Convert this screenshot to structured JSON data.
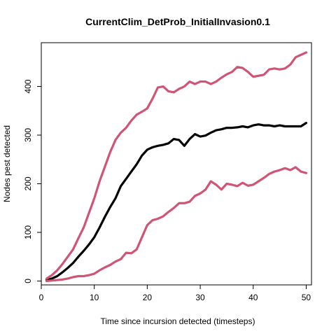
{
  "chart_data": {
    "type": "line",
    "title": "CurrentClim_DetProb_InitialInvasion0.1",
    "xlabel": "Time since incursion detected (timesteps)",
    "ylabel": "Nodes pest detected",
    "xlim": [
      0,
      51
    ],
    "ylim": [
      -8,
      490
    ],
    "xticks": [
      0,
      10,
      20,
      30,
      40,
      50
    ],
    "yticks": [
      0,
      100,
      200,
      300,
      400
    ],
    "grid": false,
    "series": [
      {
        "color": "#000000",
        "values": [
          [
            1,
            2
          ],
          [
            2,
            5
          ],
          [
            3,
            10
          ],
          [
            4,
            18
          ],
          [
            5,
            27
          ],
          [
            6,
            37
          ],
          [
            7,
            50
          ],
          [
            8,
            62
          ],
          [
            9,
            75
          ],
          [
            10,
            90
          ],
          [
            11,
            110
          ],
          [
            12,
            132
          ],
          [
            13,
            152
          ],
          [
            14,
            170
          ],
          [
            15,
            195
          ],
          [
            16,
            210
          ],
          [
            17,
            225
          ],
          [
            18,
            240
          ],
          [
            19,
            258
          ],
          [
            20,
            270
          ],
          [
            21,
            275
          ],
          [
            22,
            278
          ],
          [
            23,
            280
          ],
          [
            24,
            283
          ],
          [
            25,
            292
          ],
          [
            26,
            290
          ],
          [
            27,
            278
          ],
          [
            28,
            292
          ],
          [
            29,
            302
          ],
          [
            30,
            297
          ],
          [
            31,
            299
          ],
          [
            32,
            305
          ],
          [
            33,
            310
          ],
          [
            34,
            312
          ],
          [
            35,
            315
          ],
          [
            36,
            315
          ],
          [
            37,
            316
          ],
          [
            38,
            318
          ],
          [
            39,
            316
          ],
          [
            40,
            320
          ],
          [
            41,
            322
          ],
          [
            42,
            320
          ],
          [
            43,
            320
          ],
          [
            44,
            318
          ],
          [
            45,
            320
          ],
          [
            46,
            318
          ],
          [
            47,
            318
          ],
          [
            48,
            318
          ],
          [
            49,
            318
          ],
          [
            50,
            325
          ]
        ]
      },
      {
        "color": "#d05575",
        "values": [
          [
            1,
            5
          ],
          [
            2,
            12
          ],
          [
            3,
            22
          ],
          [
            4,
            35
          ],
          [
            5,
            50
          ],
          [
            6,
            65
          ],
          [
            7,
            88
          ],
          [
            8,
            110
          ],
          [
            9,
            140
          ],
          [
            10,
            170
          ],
          [
            11,
            205
          ],
          [
            12,
            235
          ],
          [
            13,
            265
          ],
          [
            14,
            290
          ],
          [
            15,
            305
          ],
          [
            16,
            315
          ],
          [
            17,
            330
          ],
          [
            18,
            342
          ],
          [
            19,
            348
          ],
          [
            20,
            355
          ],
          [
            21,
            375
          ],
          [
            22,
            398
          ],
          [
            23,
            400
          ],
          [
            24,
            390
          ],
          [
            25,
            388
          ],
          [
            26,
            395
          ],
          [
            27,
            400
          ],
          [
            28,
            410
          ],
          [
            29,
            405
          ],
          [
            30,
            410
          ],
          [
            31,
            410
          ],
          [
            32,
            405
          ],
          [
            33,
            410
          ],
          [
            34,
            418
          ],
          [
            35,
            425
          ],
          [
            36,
            430
          ],
          [
            37,
            440
          ],
          [
            38,
            438
          ],
          [
            39,
            430
          ],
          [
            40,
            420
          ],
          [
            41,
            422
          ],
          [
            42,
            424
          ],
          [
            43,
            435
          ],
          [
            44,
            437
          ],
          [
            45,
            435
          ],
          [
            46,
            437
          ],
          [
            47,
            445
          ],
          [
            48,
            460
          ],
          [
            49,
            465
          ],
          [
            50,
            470
          ]
        ]
      },
      {
        "color": "#d05575",
        "values": [
          [
            1,
            0
          ],
          [
            2,
            1
          ],
          [
            3,
            2
          ],
          [
            4,
            3
          ],
          [
            5,
            5
          ],
          [
            6,
            8
          ],
          [
            7,
            10
          ],
          [
            8,
            10
          ],
          [
            9,
            12
          ],
          [
            10,
            15
          ],
          [
            11,
            22
          ],
          [
            12,
            28
          ],
          [
            13,
            33
          ],
          [
            14,
            40
          ],
          [
            15,
            45
          ],
          [
            16,
            58
          ],
          [
            17,
            57
          ],
          [
            18,
            65
          ],
          [
            19,
            90
          ],
          [
            20,
            115
          ],
          [
            21,
            125
          ],
          [
            22,
            128
          ],
          [
            23,
            133
          ],
          [
            24,
            142
          ],
          [
            25,
            150
          ],
          [
            26,
            160
          ],
          [
            27,
            160
          ],
          [
            28,
            163
          ],
          [
            29,
            175
          ],
          [
            30,
            180
          ],
          [
            31,
            188
          ],
          [
            32,
            205
          ],
          [
            33,
            198
          ],
          [
            34,
            188
          ],
          [
            35,
            200
          ],
          [
            36,
            198
          ],
          [
            37,
            195
          ],
          [
            38,
            202
          ],
          [
            39,
            196
          ],
          [
            40,
            198
          ],
          [
            41,
            205
          ],
          [
            42,
            212
          ],
          [
            43,
            220
          ],
          [
            44,
            225
          ],
          [
            45,
            228
          ],
          [
            46,
            232
          ],
          [
            47,
            228
          ],
          [
            48,
            234
          ],
          [
            49,
            225
          ],
          [
            50,
            222
          ]
        ]
      }
    ]
  }
}
